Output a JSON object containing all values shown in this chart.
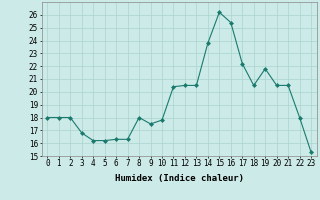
{
  "x": [
    0,
    1,
    2,
    3,
    4,
    5,
    6,
    7,
    8,
    9,
    10,
    11,
    12,
    13,
    14,
    15,
    16,
    17,
    18,
    19,
    20,
    21,
    22,
    23
  ],
  "y": [
    18.0,
    18.0,
    18.0,
    16.8,
    16.2,
    16.2,
    16.3,
    16.3,
    18.0,
    17.5,
    17.8,
    20.4,
    20.5,
    20.5,
    23.8,
    26.2,
    25.4,
    22.2,
    20.5,
    21.8,
    20.5,
    20.5,
    18.0,
    15.3
  ],
  "title": "",
  "xlabel": "Humidex (Indice chaleur)",
  "ylabel": "",
  "ylim": [
    15,
    27
  ],
  "yticks": [
    15,
    16,
    17,
    18,
    19,
    20,
    21,
    22,
    23,
    24,
    25,
    26
  ],
  "xlim": [
    -0.5,
    23.5
  ],
  "xticks": [
    0,
    1,
    2,
    3,
    4,
    5,
    6,
    7,
    8,
    9,
    10,
    11,
    12,
    13,
    14,
    15,
    16,
    17,
    18,
    19,
    20,
    21,
    22,
    23
  ],
  "line_color": "#1a7a6e",
  "marker": "D",
  "marker_size": 2.0,
  "bg_color": "#cceae7",
  "grid_color": "#aad4d0",
  "tick_fontsize": 5.5,
  "label_fontsize": 6.5
}
